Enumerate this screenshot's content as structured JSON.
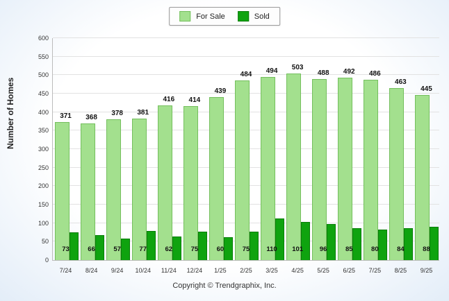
{
  "legend": {
    "for_sale_label": "For Sale",
    "sold_label": "Sold"
  },
  "colors": {
    "for_sale_fill": "#a3e08e",
    "for_sale_border": "#74bf5d",
    "sold_fill": "#0fa30f",
    "sold_border": "#0a7d0a"
  },
  "footer": "Copyright © Trendgraphix, Inc.",
  "chart_data": {
    "type": "bar",
    "title": "",
    "xlabel": "",
    "ylabel": "Number of Homes",
    "ylim": [
      0,
      600
    ],
    "ytick_step": 50,
    "grid": true,
    "legend_position": "top-center",
    "categories": [
      "7/24",
      "8/24",
      "9/24",
      "10/24",
      "11/24",
      "12/24",
      "1/25",
      "2/25",
      "3/25",
      "4/25",
      "5/25",
      "6/25",
      "7/25",
      "8/25",
      "9/25"
    ],
    "series": [
      {
        "name": "For Sale",
        "values": [
          371,
          368,
          378,
          381,
          416,
          414,
          439,
          484,
          494,
          503,
          488,
          492,
          486,
          463,
          445
        ]
      },
      {
        "name": "Sold",
        "values": [
          73,
          66,
          57,
          77,
          62,
          75,
          60,
          75,
          110,
          101,
          96,
          85,
          80,
          84,
          88
        ]
      }
    ]
  }
}
